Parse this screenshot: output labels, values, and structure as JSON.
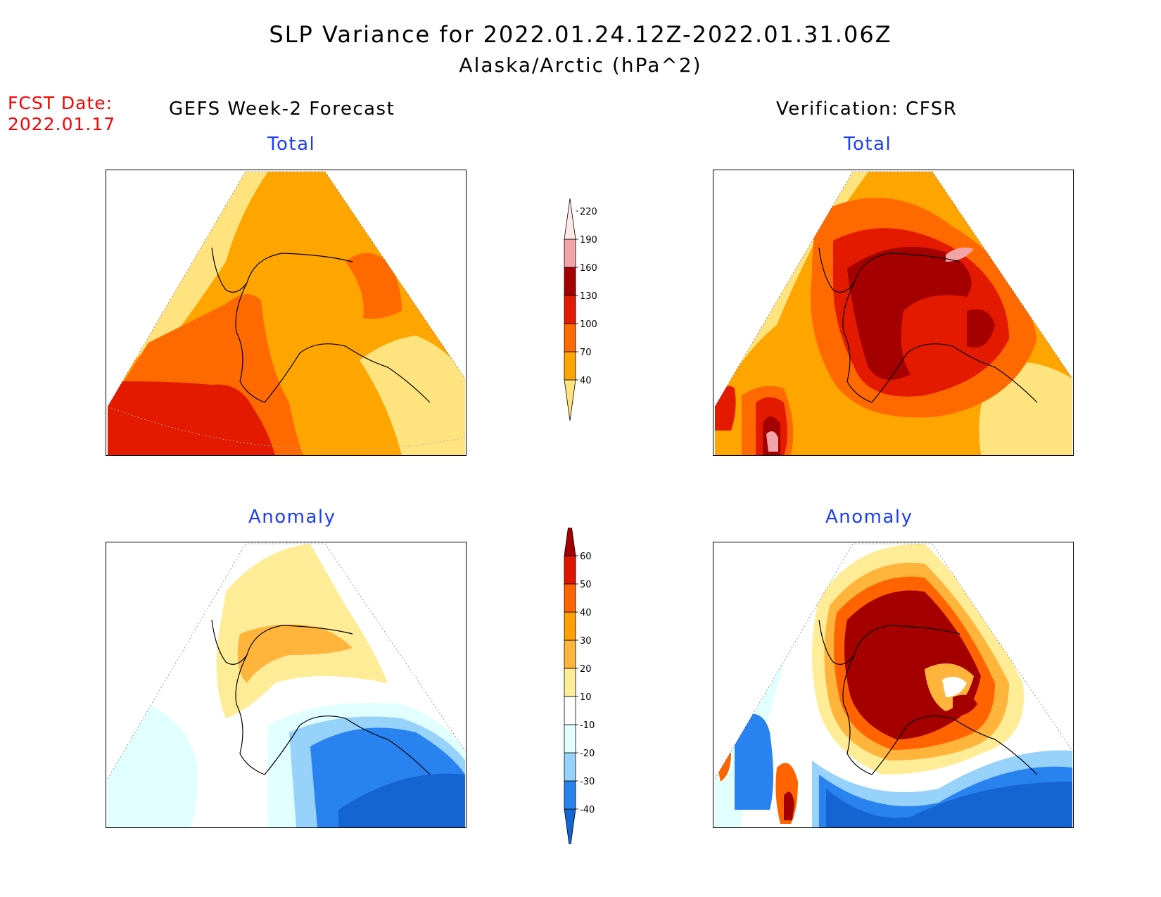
{
  "title": {
    "line1": "SLP Variance for 2022.01.24.12Z-2022.01.31.06Z",
    "line2": "Alaska/Arctic (hPa^2)"
  },
  "forecast_date": {
    "label": "FCST Date:",
    "value": "2022.01.17"
  },
  "columns": {
    "left": "GEFS Week-2 Forecast",
    "right": "Verification: CFSR"
  },
  "panels": {
    "forecast_total": "Total",
    "verification_total": "Total",
    "forecast_anomaly": "Anomaly",
    "verification_anomaly": "Anomaly"
  },
  "colorbars": {
    "total": {
      "ticks": [
        "40",
        "70",
        "100",
        "130",
        "160",
        "190",
        "220"
      ],
      "colors": [
        "#ffe37f",
        "#ffa500",
        "#ff6a00",
        "#e31a00",
        "#a50000",
        "#f4a3a8",
        "#ffe8e8"
      ]
    },
    "anomaly": {
      "ticks": [
        "-40",
        "-30",
        "-20",
        "-10",
        "10",
        "20",
        "30",
        "40",
        "50",
        "60"
      ],
      "colors": [
        "#1464d2",
        "#2882f0",
        "#96d2fa",
        "#e1ffff",
        "#ffffff",
        "#ffec96",
        "#ffb43c",
        "#ffa000",
        "#ff6400",
        "#e11400",
        "#a50000"
      ]
    }
  }
}
